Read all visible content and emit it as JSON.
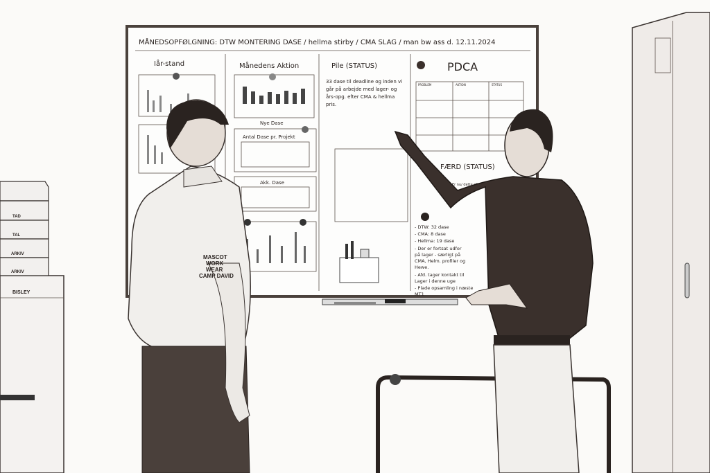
{
  "board": {
    "header": "MÅNEDSOPFØLGNING: DTW MONTERING DASE / hellma stirby / CMA SLAG / man bw ass   d. 12.11.2024",
    "col1_title": "Iår-stand",
    "col2_title": "Månedens Aktion",
    "col2_sub1": "Nye Dase",
    "col2_sub2": "Antal Dase pr. Projekt",
    "col2_sub3": "Akk. Dase",
    "col3_title": "Pile (STATUS)",
    "col3_text": [
      "33 dase til deadline og inden vi",
      "går på arbejde med lager- og",
      "års-opg. efter CMA & hellma",
      "pris."
    ],
    "pdca_title": "PDCA",
    "pdca_headers": [
      "PROBLEM",
      "AKTION",
      "STATUS"
    ],
    "faerd_title": "FÆRD (STATUS)",
    "faerd_note": "Er nu/ dette ofte",
    "faerd_items": [
      "- DTW: 32 dase",
      "- CMA: 8 dase",
      "- Hellma: 19 dase",
      "- Der er fortsat udfor",
      "  på lager - særligt på",
      "  CMA, Helm. profiler og",
      "  Hewe.",
      "- Afd. tager kontakt til",
      "  Lager i denne uge",
      "- Plade opsamling i næste",
      "  MT1"
    ]
  },
  "trays": [
    "TAD",
    "TAL",
    "ARKIV",
    "ARKIV"
  ],
  "cabinet_label": "BISLEY",
  "jacket_logo": [
    "MASCOT",
    "WORK",
    "WEAR",
    "CAMP DAVID"
  ],
  "colors": {
    "ink": "#2a2320",
    "paper": "#fbfaf8",
    "shirt": "#3a302c",
    "magnet": "#3b302c"
  }
}
